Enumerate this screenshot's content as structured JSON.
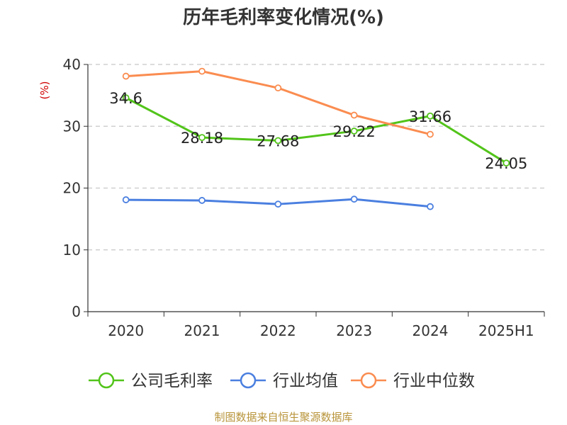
{
  "chart_data": {
    "type": "line",
    "title": "历年毛利率变化情况(%)",
    "ylabel": "(%)",
    "xlabel": "",
    "categories": [
      "2020",
      "2021",
      "2022",
      "2023",
      "2024",
      "2025H1"
    ],
    "ylim": [
      0,
      40
    ],
    "yticks": [
      0,
      10,
      20,
      30,
      40
    ],
    "grid": true,
    "legend_position": "bottom",
    "series": [
      {
        "name": "公司毛利率",
        "color": "#52c41a",
        "values": [
          34.6,
          28.18,
          27.68,
          29.22,
          31.66,
          24.05
        ],
        "labels": [
          "34.6",
          "28.18",
          "27.68",
          "29.22",
          "31.66",
          "24.05"
        ]
      },
      {
        "name": "行业均值",
        "color": "#4a7fe0",
        "values": [
          18.1,
          18.0,
          17.4,
          18.2,
          17.0,
          null
        ]
      },
      {
        "name": "行业中位数",
        "color": "#fa8c50",
        "values": [
          38.1,
          38.9,
          36.2,
          31.8,
          28.7,
          null
        ]
      }
    ]
  },
  "source": "制图数据来自恒生聚源数据库"
}
